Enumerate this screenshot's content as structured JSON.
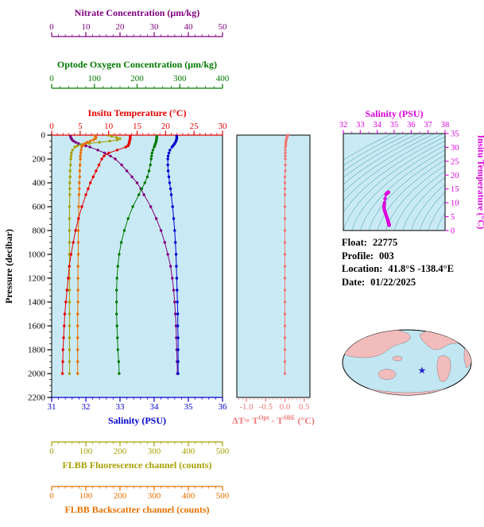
{
  "figure": {
    "info": {
      "float_label": "Float:",
      "float_value": "22775",
      "profile_label": "Profile:",
      "profile_value": "003",
      "location_label": "Location:",
      "location_value": "41.8°S -138.4°E",
      "date_label": "Date:",
      "date_value": "01/22/2025"
    }
  },
  "colors": {
    "plot_bg": "#c9eaf5",
    "contour": "#4a9f9f",
    "map_ocean": "#c2e6f2",
    "map_land": "#f2bcbc",
    "star": "#2020c8"
  },
  "map": {
    "star_icon": "★"
  },
  "chart_data": [
    {
      "type": "line",
      "name": "vertical-profiles",
      "ylabel": "Pressure (decibar)",
      "ylim": [
        0,
        2200
      ],
      "yticks": [
        0,
        200,
        400,
        600,
        800,
        1000,
        1200,
        1400,
        1600,
        1800,
        2000,
        2200
      ],
      "axes": [
        {
          "id": "nitrate",
          "label": "Nitrate Concentration (μm/kg)",
          "color": "#800080",
          "lim": [
            0,
            50
          ],
          "ticks": [
            0,
            10,
            20,
            30,
            40,
            50
          ],
          "position": "top"
        },
        {
          "id": "oxygen",
          "label": "Optode Oxygen Concentration (μm/kg)",
          "color": "#007a00",
          "lim": [
            0,
            400
          ],
          "ticks": [
            0,
            100,
            200,
            300,
            400
          ],
          "position": "top"
        },
        {
          "id": "temperature",
          "label": "Insitu Temperature (°C)",
          "color": "#e60000",
          "lim": [
            0,
            30
          ],
          "ticks": [
            0,
            5,
            10,
            15,
            20,
            25,
            30
          ],
          "position": "top"
        },
        {
          "id": "salinity",
          "label": "Salinity (PSU)",
          "color": "#0000d0",
          "lim": [
            31,
            36
          ],
          "ticks": [
            31,
            32,
            33,
            34,
            35,
            36
          ],
          "position": "bottom"
        },
        {
          "id": "fluorescence",
          "label": "FLBB Fluorescence channel (counts)",
          "color": "#a8a000",
          "lim": [
            0,
            500
          ],
          "ticks": [
            0,
            100,
            200,
            300,
            400,
            500
          ],
          "position": "bottom"
        },
        {
          "id": "backscatter",
          "label": "FLBB Backscatter channel (counts)",
          "color": "#e87000",
          "lim": [
            0,
            500
          ],
          "ticks": [
            0,
            100,
            200,
            300,
            400,
            500
          ],
          "position": "bottom"
        }
      ],
      "pressure": [
        0,
        10,
        20,
        30,
        40,
        50,
        60,
        70,
        80,
        90,
        100,
        125,
        150,
        175,
        200,
        250,
        300,
        350,
        400,
        450,
        500,
        600,
        700,
        800,
        900,
        1000,
        1100,
        1200,
        1300,
        1400,
        1500,
        1600,
        1700,
        1800,
        1900,
        2000
      ],
      "series": [
        {
          "name": "nitrate",
          "axis": "nitrate",
          "values": [
            5.5,
            5.5,
            5.6,
            5.8,
            6.0,
            6.4,
            7.0,
            7.8,
            8.8,
            10.0,
            11.2,
            13.5,
            15.5,
            17.2,
            18.6,
            20.5,
            22.0,
            23.5,
            25.0,
            26.1,
            27.0,
            29.0,
            30.6,
            32.0,
            33.1,
            34.0,
            34.8,
            35.3,
            35.7,
            36.0,
            36.2,
            36.4,
            36.5,
            36.6,
            36.7,
            36.8
          ]
        },
        {
          "name": "oxygen",
          "axis": "oxygen",
          "values": [
            246,
            246,
            246,
            246,
            245,
            245,
            244,
            243,
            242,
            241,
            240,
            237,
            235,
            234,
            233,
            231,
            228,
            224,
            218,
            211,
            204,
            190,
            179,
            170,
            163,
            158,
            155,
            153,
            152,
            152,
            152,
            153,
            154,
            155,
            157,
            158
          ]
        },
        {
          "name": "fluorescence",
          "axis": "fluorescence",
          "values": [
            165,
            175,
            190,
            200,
            192,
            170,
            140,
            110,
            88,
            75,
            68,
            61,
            58,
            57,
            56,
            55,
            54,
            54,
            53,
            53,
            53,
            52,
            52,
            52,
            52,
            52,
            52,
            52,
            52,
            52,
            52,
            52,
            52,
            52,
            52,
            52
          ]
        },
        {
          "name": "backscatter",
          "axis": "backscatter",
          "values": [
            125,
            128,
            130,
            128,
            122,
            113,
            104,
            98,
            93,
            90,
            88,
            86,
            85,
            84,
            84,
            83,
            82,
            82,
            81,
            81,
            80,
            79,
            79,
            78,
            78,
            78,
            77,
            77,
            77,
            77,
            76,
            76,
            76,
            76,
            76,
            76
          ]
        },
        {
          "name": "temperature",
          "axis": "temperature",
          "values": [
            13.8,
            13.8,
            13.8,
            13.8,
            13.7,
            13.7,
            13.6,
            13.6,
            13.5,
            13.4,
            13.0,
            11.5,
            10.0,
            9.2,
            8.8,
            8.3,
            7.8,
            7.3,
            6.8,
            6.4,
            6.0,
            5.3,
            4.7,
            4.2,
            3.8,
            3.4,
            3.1,
            2.9,
            2.7,
            2.5,
            2.3,
            2.2,
            2.1,
            2.0,
            1.95,
            1.9
          ]
        },
        {
          "name": "salinity",
          "axis": "salinity",
          "values": [
            34.66,
            34.66,
            34.66,
            34.66,
            34.65,
            34.64,
            34.62,
            34.6,
            34.58,
            34.55,
            34.52,
            34.46,
            34.43,
            34.41,
            34.4,
            34.4,
            34.41,
            34.43,
            34.45,
            34.48,
            34.5,
            34.54,
            34.57,
            34.6,
            34.62,
            34.64,
            34.65,
            34.66,
            34.67,
            34.68,
            34.69,
            34.69,
            34.7,
            34.7,
            34.7,
            34.7
          ]
        }
      ]
    },
    {
      "type": "line",
      "name": "temperature-difference",
      "xlabel_parts": {
        "prefix": "ΔT= T",
        "sup1": "Opt",
        "mid": " - T",
        "sup2": "SBE",
        "suffix": " (°C)"
      },
      "color": "#f07878",
      "xlim": [
        -1.25,
        0.65
      ],
      "xticks": [
        "-1.0",
        "-0.5",
        "0.0",
        "0.5"
      ],
      "xtick_values": [
        -1.0,
        -0.5,
        0.0,
        0.5
      ],
      "pressure": [
        0,
        10,
        20,
        30,
        40,
        50,
        60,
        70,
        80,
        90,
        100,
        125,
        150,
        175,
        200,
        250,
        300,
        350,
        400,
        450,
        500,
        600,
        700,
        800,
        900,
        1000,
        1100,
        1200,
        1300,
        1400,
        1500,
        1600,
        1700,
        1800,
        1900,
        2000
      ],
      "values": [
        0.08,
        0.06,
        0.05,
        0.04,
        0.03,
        0.03,
        0.02,
        0.02,
        0.02,
        0.02,
        0.01,
        0.01,
        0.01,
        0.01,
        0.01,
        0.01,
        0.01,
        0.0,
        0.0,
        0.0,
        0.0,
        0.0,
        0.0,
        0.0,
        0.0,
        0.0,
        0.0,
        0.0,
        0.0,
        0.0,
        0.0,
        0.0,
        0.0,
        0.0,
        0.0,
        0.0
      ]
    },
    {
      "type": "scatter",
      "name": "ts-diagram",
      "title": "Salinity (PSU)",
      "ylabel": "Insitu Temperature (°C)",
      "color": "#dd00dd",
      "xlim": [
        32,
        38
      ],
      "xticks": [
        32,
        33,
        34,
        35,
        36,
        37,
        38
      ],
      "ylim": [
        0,
        35
      ],
      "yticks": [
        0,
        5,
        10,
        15,
        20,
        25,
        30,
        35
      ],
      "grid": "density contours",
      "points": [
        [
          34.66,
          13.8
        ],
        [
          34.66,
          13.8
        ],
        [
          34.66,
          13.8
        ],
        [
          34.66,
          13.8
        ],
        [
          34.65,
          13.7
        ],
        [
          34.64,
          13.7
        ],
        [
          34.62,
          13.6
        ],
        [
          34.6,
          13.6
        ],
        [
          34.58,
          13.5
        ],
        [
          34.55,
          13.4
        ],
        [
          34.52,
          13.0
        ],
        [
          34.46,
          11.5
        ],
        [
          34.43,
          10.0
        ],
        [
          34.41,
          9.2
        ],
        [
          34.4,
          8.8
        ],
        [
          34.4,
          8.3
        ],
        [
          34.41,
          7.8
        ],
        [
          34.43,
          7.3
        ],
        [
          34.45,
          6.8
        ],
        [
          34.48,
          6.4
        ],
        [
          34.5,
          6.0
        ],
        [
          34.54,
          5.3
        ],
        [
          34.57,
          4.7
        ],
        [
          34.6,
          4.2
        ],
        [
          34.62,
          3.8
        ],
        [
          34.64,
          3.4
        ],
        [
          34.65,
          3.1
        ],
        [
          34.66,
          2.9
        ],
        [
          34.67,
          2.7
        ],
        [
          34.68,
          2.5
        ],
        [
          34.69,
          2.3
        ],
        [
          34.69,
          2.2
        ],
        [
          34.7,
          2.1
        ],
        [
          34.7,
          2.0
        ],
        [
          34.7,
          1.95
        ],
        [
          34.7,
          1.9
        ]
      ]
    }
  ]
}
